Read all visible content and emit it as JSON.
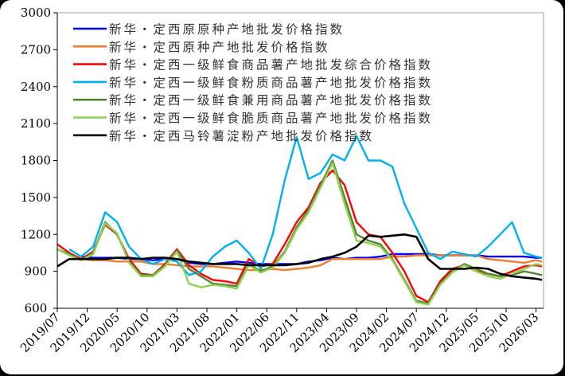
{
  "chart_data": {
    "type": "line",
    "title": "",
    "xlabel": "",
    "ylabel": "",
    "ylim": [
      600,
      3000
    ],
    "yticks": [
      600,
      900,
      1200,
      1500,
      1800,
      2100,
      2400,
      2700,
      3000
    ],
    "xtick_labels": [
      "2019/07",
      "2019/12",
      "2020/05",
      "2020/10",
      "2021/03",
      "2021/08",
      "2022/01",
      "2022/06",
      "2022/11",
      "2023/04",
      "2023/09",
      "2024/02",
      "2024/07",
      "2024/12",
      "2025/05",
      "2025/10",
      "2026/03"
    ],
    "grid": false,
    "legend_position": "upper left",
    "x": [
      "2019/07",
      "2019/09",
      "2019/11",
      "2020/01",
      "2020/03",
      "2020/05",
      "2020/07",
      "2020/09",
      "2020/11",
      "2021/01",
      "2021/03",
      "2021/05",
      "2021/07",
      "2021/09",
      "2021/11",
      "2022/01",
      "2022/03",
      "2022/05",
      "2022/07",
      "2022/09",
      "2022/11",
      "2023/01",
      "2023/03",
      "2023/05",
      "2023/07",
      "2023/09",
      "2023/11",
      "2024/01",
      "2024/03",
      "2024/05",
      "2024/07",
      "2024/09",
      "2024/11",
      "2025/01",
      "2025/03",
      "2025/05",
      "2025/07",
      "2025/09",
      "2025/11",
      "2026/01",
      "2026/03",
      "2026/04"
    ],
    "series": [
      {
        "name": "新华・定西原原种产地批发价格指数",
        "color": "#0000FF",
        "values": [
          null,
          null,
          1020,
          1010,
          1010,
          1010,
          1000,
          1000,
          990,
          1000,
          1000,
          970,
          960,
          960,
          970,
          980,
          970,
          960,
          960,
          960,
          960,
          980,
          990,
          1010,
          1000,
          1010,
          1010,
          1020,
          1040,
          1040,
          1040,
          1040,
          1030,
          1030,
          1030,
          1030,
          1020,
          1020,
          1020,
          1020,
          1010,
          1010
        ]
      },
      {
        "name": "新华・定西原种产地批发价格指数",
        "color": "#ED7D31",
        "values": [
          null,
          null,
          1000,
          990,
          990,
          980,
          980,
          980,
          960,
          960,
          950,
          940,
          940,
          940,
          930,
          920,
          910,
          910,
          920,
          910,
          920,
          930,
          950,
          1000,
          1000,
          1000,
          1000,
          1000,
          1020,
          1020,
          1030,
          1030,
          1030,
          1030,
          1030,
          1030,
          1000,
          990,
          980,
          970,
          990,
          980
        ]
      },
      {
        "name": "新华・定西一级鲜食商品薯产地批发综合价格指数",
        "color": "#FF0000",
        "values": [
          1120,
          1050,
          1000,
          1060,
          1280,
          1200,
          1000,
          880,
          870,
          960,
          1080,
          950,
          880,
          830,
          820,
          800,
          1000,
          940,
          960,
          1120,
          1300,
          1420,
          1620,
          1720,
          1600,
          1300,
          1200,
          1180,
          1050,
          900,
          700,
          650,
          820,
          920,
          950,
          900,
          880,
          860,
          900,
          940,
          950,
          940
        ]
      },
      {
        "name": "新华・定西一级鲜食粉质商品薯产地批发价格指数",
        "color": "#00B0F0",
        "values": [
          null,
          1080,
          1020,
          1100,
          1380,
          1300,
          1100,
          1000,
          960,
          1000,
          980,
          870,
          900,
          1020,
          1100,
          1150,
          1050,
          920,
          1200,
          1640,
          1990,
          1650,
          1700,
          1850,
          1800,
          2000,
          1800,
          1800,
          1750,
          1450,
          1250,
          1050,
          1000,
          1060,
          1040,
          1020,
          1100,
          1200,
          1300,
          1050,
          1020,
          1010
        ]
      },
      {
        "name": "新华・定西一级鲜食兼用商品薯产地批发价格指数",
        "color": "#548235",
        "values": [
          1080,
          1040,
          990,
          1050,
          1300,
          1200,
          980,
          870,
          870,
          950,
          1070,
          920,
          860,
          800,
          790,
          780,
          960,
          900,
          940,
          1060,
          1260,
          1400,
          1600,
          1800,
          1500,
          1200,
          1150,
          1120,
          1000,
          830,
          660,
          640,
          800,
          900,
          960,
          920,
          880,
          860,
          870,
          900,
          880,
          870
        ]
      },
      {
        "name": "新华・定西一级鲜食脆质商品薯产地批发价格指数",
        "color": "#92D050",
        "values": [
          1080,
          1030,
          990,
          1040,
          1290,
          1210,
          970,
          860,
          860,
          940,
          1060,
          800,
          770,
          790,
          780,
          760,
          950,
          890,
          930,
          1050,
          1240,
          1380,
          1580,
          1780,
          1450,
          1150,
          1130,
          1100,
          990,
          820,
          650,
          630,
          790,
          890,
          950,
          900,
          860,
          840,
          880,
          920,
          960,
          950
        ]
      },
      {
        "name": "新华・定西马铃薯淀粉产地批发价格指数",
        "color": "#000000",
        "values": [
          940,
          1000,
          1000,
          1000,
          1000,
          1010,
          1010,
          1000,
          1010,
          1010,
          1000,
          980,
          970,
          960,
          960,
          960,
          950,
          950,
          950,
          950,
          960,
          970,
          1000,
          1020,
          1050,
          1100,
          1190,
          1180,
          1190,
          1200,
          1180,
          1000,
          920,
          920,
          920,
          930,
          920,
          880,
          860,
          850,
          840,
          830
        ]
      }
    ]
  },
  "legend": {
    "items": [
      {
        "label": "新华・定西原原种产地批发价格指数",
        "color": "#0000FF"
      },
      {
        "label": "新华・定西原种产地批发价格指数",
        "color": "#ED7D31"
      },
      {
        "label": "新华・定西一级鲜食商品薯产地批发综合价格指数",
        "color": "#FF0000"
      },
      {
        "label": "新华・定西一级鲜食粉质商品薯产地批发价格指数",
        "color": "#00B0F0"
      },
      {
        "label": "新华・定西一级鲜食兼用商品薯产地批发价格指数",
        "color": "#548235"
      },
      {
        "label": "新华・定西一级鲜食脆质商品薯产地批发价格指数",
        "color": "#92D050"
      },
      {
        "label": "新华・定西马铃薯淀粉产地批发价格指数",
        "color": "#000000"
      }
    ]
  }
}
